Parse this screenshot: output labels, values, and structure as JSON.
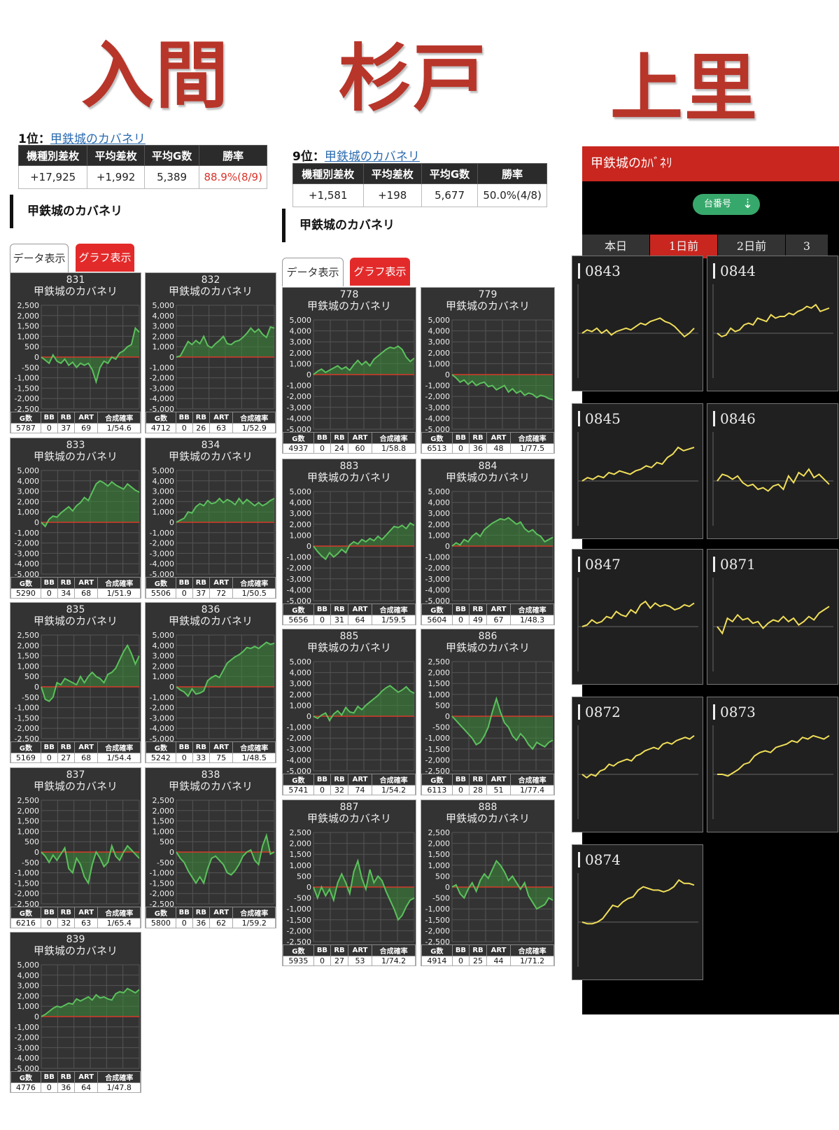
{
  "headings": {
    "iruma": "入間",
    "sugito": "杉戸",
    "kamisato": "上里"
  },
  "left": {
    "rank": "1位：",
    "link": "甲鉄城のカバネリ",
    "headers": [
      "機種別差枚",
      "平均差枚",
      "平均G数",
      "勝率"
    ],
    "values": [
      "+17,925",
      "+1,992",
      "5,389",
      "88.9%(8/9)"
    ],
    "section": "甲鉄城のカバネリ",
    "tab_data": "データ表示",
    "tab_graph": "グラフ表示"
  },
  "middle": {
    "rank": "9位：",
    "link": "甲鉄城のカバネリ",
    "headers": [
      "機種別差枚",
      "平均差枚",
      "平均G数",
      "勝率"
    ],
    "values": [
      "+1,581",
      "+198",
      "5,677",
      "50.0%(4/8)"
    ],
    "section": "甲鉄城のカバネリ",
    "tab_data": "データ表示",
    "tab_graph": "グラフ表示"
  },
  "mini_table_headers": [
    "G数",
    "BB",
    "RB",
    "ART",
    "合成確率"
  ],
  "machine_name": "甲鉄城のカバネリ",
  "left_charts": [
    {
      "num": "831",
      "ticks": [
        "2,500",
        "2,000",
        "1,500",
        "1,000",
        "500",
        "0",
        "-500",
        "-1,000",
        "-1,500",
        "-2,000",
        "-2,500"
      ],
      "max": 2500,
      "data": [
        0,
        -150,
        -300,
        100,
        -200,
        -300,
        -100,
        -400,
        -250,
        -500,
        -300,
        -400,
        -300,
        -600,
        -1200,
        -500,
        -200,
        -300,
        0,
        -100,
        200,
        300,
        500,
        600,
        1400,
        1200
      ],
      "stats": [
        "5787",
        "0",
        "37",
        "69",
        "1/54.6"
      ]
    },
    {
      "num": "832",
      "ticks": [
        "5,000",
        "4,000",
        "3,000",
        "2,000",
        "1,000",
        "0",
        "-1,000",
        "-2,000",
        "-3,000",
        "-4,000",
        "-5,000"
      ],
      "max": 5000,
      "data": [
        0,
        100,
        800,
        1500,
        1200,
        1600,
        1300,
        2000,
        1100,
        900,
        1300,
        1600,
        2000,
        1300,
        1200,
        1500,
        1600,
        1900,
        2300,
        2800,
        2400,
        2700,
        2200,
        1900,
        2900,
        2800
      ],
      "stats": [
        "4712",
        "0",
        "26",
        "63",
        "1/52.9"
      ]
    },
    {
      "num": "833",
      "ticks": [
        "5,000",
        "4,000",
        "3,000",
        "2,000",
        "1,000",
        "0",
        "-1,000",
        "-2,000",
        "-3,000",
        "-4,000",
        "-5,000"
      ],
      "max": 5000,
      "data": [
        0,
        -400,
        300,
        600,
        500,
        900,
        1200,
        1500,
        1100,
        1600,
        1900,
        2400,
        2100,
        2900,
        3700,
        4000,
        3800,
        3500,
        3900,
        3600,
        3400,
        3200,
        3700,
        3400,
        3100,
        2900
      ],
      "stats": [
        "5290",
        "0",
        "34",
        "68",
        "1/51.9"
      ]
    },
    {
      "num": "834",
      "ticks": [
        "5,000",
        "4,000",
        "3,000",
        "2,000",
        "1,000",
        "0",
        "-1,000",
        "-2,000",
        "-3,000",
        "-4,000",
        "-5,000"
      ],
      "max": 5000,
      "data": [
        0,
        200,
        400,
        1000,
        900,
        1500,
        1800,
        1600,
        2100,
        1800,
        1900,
        2300,
        1900,
        2200,
        2000,
        1700,
        2300,
        1800,
        2200,
        1900,
        1600,
        1900,
        1600,
        1800,
        2100,
        2300
      ],
      "stats": [
        "5506",
        "0",
        "37",
        "72",
        "1/50.5"
      ]
    },
    {
      "num": "835",
      "ticks": [
        "2,500",
        "2,000",
        "1,500",
        "1,000",
        "500",
        "0",
        "-500",
        "-1,000",
        "-1,500",
        "-2,000",
        "-2,500"
      ],
      "max": 2500,
      "data": [
        0,
        -600,
        -700,
        -500,
        200,
        100,
        400,
        300,
        200,
        100,
        500,
        200,
        500,
        700,
        500,
        400,
        200,
        600,
        700,
        900,
        1300,
        1700,
        2000,
        1600,
        1100,
        1500
      ],
      "stats": [
        "5169",
        "0",
        "27",
        "68",
        "1/54.4"
      ]
    },
    {
      "num": "836",
      "ticks": [
        "5,000",
        "4,000",
        "3,000",
        "2,000",
        "1,000",
        "0",
        "-1,000",
        "-2,000",
        "-3,000",
        "-4,000",
        "-5,000"
      ],
      "max": 5000,
      "data": [
        0,
        -300,
        -500,
        -900,
        -200,
        -700,
        -600,
        -400,
        600,
        900,
        1100,
        900,
        1600,
        2300,
        2600,
        2900,
        3100,
        3400,
        3800,
        3700,
        3900,
        3700,
        4000,
        4300,
        4100,
        4200
      ],
      "stats": [
        "5242",
        "0",
        "33",
        "75",
        "1/48.5"
      ]
    },
    {
      "num": "837",
      "ticks": [
        "2,500",
        "2,000",
        "1,500",
        "1,000",
        "500",
        "0",
        "-500",
        "-1,000",
        "-1,500",
        "-2,000",
        "-2,500"
      ],
      "max": 2500,
      "data": [
        0,
        -200,
        -500,
        -150,
        -400,
        -100,
        200,
        -800,
        -1000,
        -300,
        -600,
        -1200,
        -1500,
        -600,
        0,
        -300,
        -700,
        -500,
        300,
        -200,
        -400,
        0,
        300,
        100,
        -100,
        -300
      ],
      "stats": [
        "6216",
        "0",
        "32",
        "63",
        "1/65.4"
      ]
    },
    {
      "num": "838",
      "ticks": [
        "2,500",
        "2,000",
        "1,500",
        "1,000",
        "500",
        "0",
        "-500",
        "-1,000",
        "-1,500",
        "-2,000",
        "-2,500"
      ],
      "max": 2500,
      "data": [
        0,
        -300,
        -500,
        -900,
        -1200,
        -1500,
        -1200,
        -1500,
        -800,
        -300,
        -200,
        -400,
        -600,
        -1000,
        -1100,
        -900,
        -600,
        -200,
        0,
        100,
        -400,
        -600,
        300,
        800,
        -100,
        0
      ],
      "stats": [
        "5800",
        "0",
        "36",
        "62",
        "1/59.2"
      ]
    },
    {
      "num": "839",
      "ticks": [
        "5,000",
        "4,000",
        "3,000",
        "2,000",
        "1,000",
        "0",
        "-1,000",
        "-2,000",
        "-3,000",
        "-4,000",
        "-5,000"
      ],
      "max": 5000,
      "data": [
        0,
        200,
        500,
        800,
        1000,
        900,
        1100,
        1300,
        1200,
        1700,
        1500,
        1700,
        1900,
        1600,
        2100,
        1800,
        1900,
        1700,
        1600,
        2200,
        2400,
        2300,
        2700,
        2500,
        2300,
        2600
      ],
      "stats": [
        "4776",
        "0",
        "36",
        "64",
        "1/47.8"
      ]
    }
  ],
  "mid_charts": [
    {
      "num": "778",
      "ticks": [
        "5,000",
        "4,000",
        "3,000",
        "2,000",
        "1,000",
        "0",
        "-1,000",
        "-2,000",
        "-3,000",
        "-4,000",
        "-5,000"
      ],
      "max": 5000,
      "data": [
        0,
        300,
        500,
        200,
        400,
        600,
        800,
        500,
        700,
        400,
        900,
        1300,
        900,
        1200,
        800,
        1400,
        1700,
        2000,
        2300,
        2500,
        2400,
        2600,
        2300,
        1600,
        1200,
        1500
      ],
      "stats": [
        "4937",
        "0",
        "24",
        "60",
        "1/58.8"
      ]
    },
    {
      "num": "779",
      "ticks": [
        "5,000",
        "4,000",
        "3,000",
        "2,000",
        "1,000",
        "0",
        "-1,000",
        "-2,000",
        "-3,000",
        "-4,000",
        "-5,000"
      ],
      "max": 5000,
      "data": [
        0,
        -300,
        -700,
        -500,
        -900,
        -600,
        -1000,
        -800,
        -700,
        -1100,
        -1000,
        -1400,
        -1200,
        -1000,
        -1600,
        -1300,
        -1700,
        -1500,
        -1900,
        -1700,
        -1800,
        -2100,
        -1900,
        -2000,
        -2200,
        -2300
      ],
      "stats": [
        "6513",
        "0",
        "36",
        "48",
        "1/77.5"
      ]
    },
    {
      "num": "883",
      "ticks": [
        "5,000",
        "4,000",
        "3,000",
        "2,000",
        "1,000",
        "0",
        "-1,000",
        "-2,000",
        "-3,000",
        "-4,000",
        "-5,000"
      ],
      "max": 5000,
      "data": [
        0,
        -500,
        -900,
        -1200,
        -600,
        -1000,
        -700,
        -300,
        -600,
        100,
        400,
        200,
        600,
        400,
        700,
        500,
        900,
        600,
        1000,
        1400,
        1800,
        1700,
        1900,
        1600,
        2100,
        1900
      ],
      "stats": [
        "5656",
        "0",
        "31",
        "64",
        "1/59.5"
      ]
    },
    {
      "num": "884",
      "ticks": [
        "5,000",
        "4,000",
        "3,000",
        "2,000",
        "1,000",
        "0",
        "-1,000",
        "-2,000",
        "-3,000",
        "-4,000",
        "-5,000"
      ],
      "max": 5000,
      "data": [
        0,
        300,
        100,
        600,
        400,
        900,
        1200,
        900,
        1500,
        1800,
        2100,
        2300,
        2500,
        2400,
        2600,
        2300,
        2000,
        2200,
        1600,
        1300,
        1500,
        1100,
        900,
        400,
        600,
        800
      ],
      "stats": [
        "5604",
        "0",
        "49",
        "67",
        "1/48.3"
      ]
    },
    {
      "num": "885",
      "ticks": [
        "5,000",
        "4,000",
        "3,000",
        "2,000",
        "1,000",
        "0",
        "-1,000",
        "-2,000",
        "-3,000",
        "-4,000",
        "-5,000"
      ],
      "max": 5000,
      "data": [
        0,
        -200,
        100,
        300,
        -400,
        200,
        500,
        100,
        800,
        400,
        300,
        900,
        600,
        1000,
        1300,
        1600,
        1900,
        2300,
        2600,
        2800,
        2500,
        2200,
        2400,
        2700,
        2300,
        2100
      ],
      "stats": [
        "5741",
        "0",
        "32",
        "74",
        "1/54.2"
      ]
    },
    {
      "num": "886",
      "ticks": [
        "2,500",
        "2,000",
        "1,500",
        "1,000",
        "500",
        "0",
        "-500",
        "-1,000",
        "-1,500",
        "-2,000",
        "-2,500"
      ],
      "max": 2500,
      "data": [
        0,
        -200,
        -400,
        -600,
        -800,
        -1000,
        -1300,
        -1200,
        -900,
        -500,
        200,
        800,
        200,
        -300,
        -500,
        -900,
        -1100,
        -800,
        -1000,
        -1300,
        -1500,
        -1200,
        -1300,
        -1400,
        -1200,
        -1100
      ],
      "stats": [
        "6113",
        "0",
        "28",
        "51",
        "1/77.4"
      ]
    },
    {
      "num": "887",
      "ticks": [
        "2,500",
        "2,000",
        "1,500",
        "1,000",
        "500",
        "0",
        "-500",
        "-1,000",
        "-1,500",
        "-2,000",
        "-2,500"
      ],
      "max": 2500,
      "data": [
        0,
        -500,
        0,
        -400,
        -100,
        -600,
        200,
        600,
        200,
        -300,
        700,
        1200,
        400,
        -100,
        800,
        200,
        500,
        300,
        -200,
        -600,
        -1000,
        -1500,
        -1300,
        -900,
        -600,
        -500
      ],
      "stats": [
        "5935",
        "0",
        "27",
        "53",
        "1/74.2"
      ]
    },
    {
      "num": "888",
      "ticks": [
        "2,500",
        "2,000",
        "1,500",
        "1,000",
        "500",
        "0",
        "-500",
        "-1,000",
        "-1,500",
        "-2,000",
        "-2,500"
      ],
      "max": 2500,
      "data": [
        0,
        100,
        -300,
        -500,
        -100,
        200,
        -200,
        300,
        600,
        400,
        800,
        1200,
        1000,
        700,
        300,
        500,
        200,
        -100,
        200,
        -400,
        -700,
        -1000,
        -900,
        -800,
        -500,
        -600
      ],
      "stats": [
        "4914",
        "0",
        "25",
        "44",
        "1/71.2"
      ]
    }
  ],
  "kamisato": {
    "header": "甲鉄城のｶﾊﾞﾈﾘ",
    "sort_label": "台番号",
    "sort_icon": "sort-number-icon",
    "tabs": [
      "本日",
      "1日前",
      "2日前",
      "3"
    ],
    "selected_tab": "1日前",
    "line_color": "#f0de5a",
    "charts": [
      {
        "num": "0843",
        "data": [
          0,
          200,
          100,
          300,
          0,
          200,
          -100,
          100,
          200,
          300,
          200,
          400,
          600,
          500,
          700,
          800,
          900,
          700,
          600,
          400,
          100,
          -200,
          0,
          300
        ]
      },
      {
        "num": "0844",
        "data": [
          0,
          -200,
          -100,
          300,
          100,
          200,
          500,
          600,
          500,
          900,
          800,
          700,
          1100,
          900,
          1000,
          1000,
          1200,
          1100,
          1300,
          1400,
          1600,
          1500,
          1700,
          1300,
          1400,
          1500
        ]
      },
      {
        "num": "0845",
        "data": [
          0,
          200,
          100,
          300,
          200,
          500,
          400,
          600,
          500,
          400,
          600,
          700,
          900,
          800,
          1100,
          1000,
          1400,
          1600,
          2000,
          1800,
          1900,
          2000
        ]
      },
      {
        "num": "0846",
        "data": [
          0,
          400,
          300,
          100,
          300,
          -100,
          -300,
          -200,
          -500,
          -400,
          -600,
          -300,
          -200,
          -500,
          300,
          -100,
          500,
          300,
          700,
          200,
          400,
          100,
          -200
        ]
      },
      {
        "num": "0847",
        "data": [
          0,
          100,
          400,
          200,
          300,
          600,
          500,
          900,
          700,
          600,
          1000,
          800,
          1300,
          1500,
          1100,
          1400,
          1200,
          1300,
          1200,
          1000,
          1100,
          1300,
          1200,
          1400
        ]
      },
      {
        "num": "0871",
        "data": [
          0,
          -400,
          500,
          300,
          700,
          400,
          500,
          200,
          300,
          -100,
          200,
          400,
          300,
          600,
          300,
          500,
          100,
          300,
          600,
          400,
          800,
          1000,
          1200
        ]
      },
      {
        "num": "0872",
        "data": [
          0,
          -200,
          0,
          -100,
          200,
          300,
          600,
          500,
          700,
          800,
          900,
          800,
          1100,
          1200,
          1400,
          1500,
          1600,
          1500,
          1800,
          1900,
          1800,
          2000,
          2100,
          2200,
          2100,
          2300
        ]
      },
      {
        "num": "0873",
        "data": [
          0,
          0,
          -100,
          100,
          300,
          600,
          700,
          1100,
          1300,
          1400,
          1300,
          1600,
          1700,
          1800,
          2000,
          1900,
          2200,
          2100,
          2300,
          2200,
          2100,
          2300
        ]
      },
      {
        "num": "0874",
        "data": [
          0,
          -100,
          -100,
          0,
          200,
          600,
          1000,
          900,
          1200,
          1400,
          1500,
          1900,
          2100,
          2000,
          1900,
          1900,
          1800,
          1900,
          2100,
          2500,
          2300,
          2300,
          2200
        ]
      }
    ]
  }
}
